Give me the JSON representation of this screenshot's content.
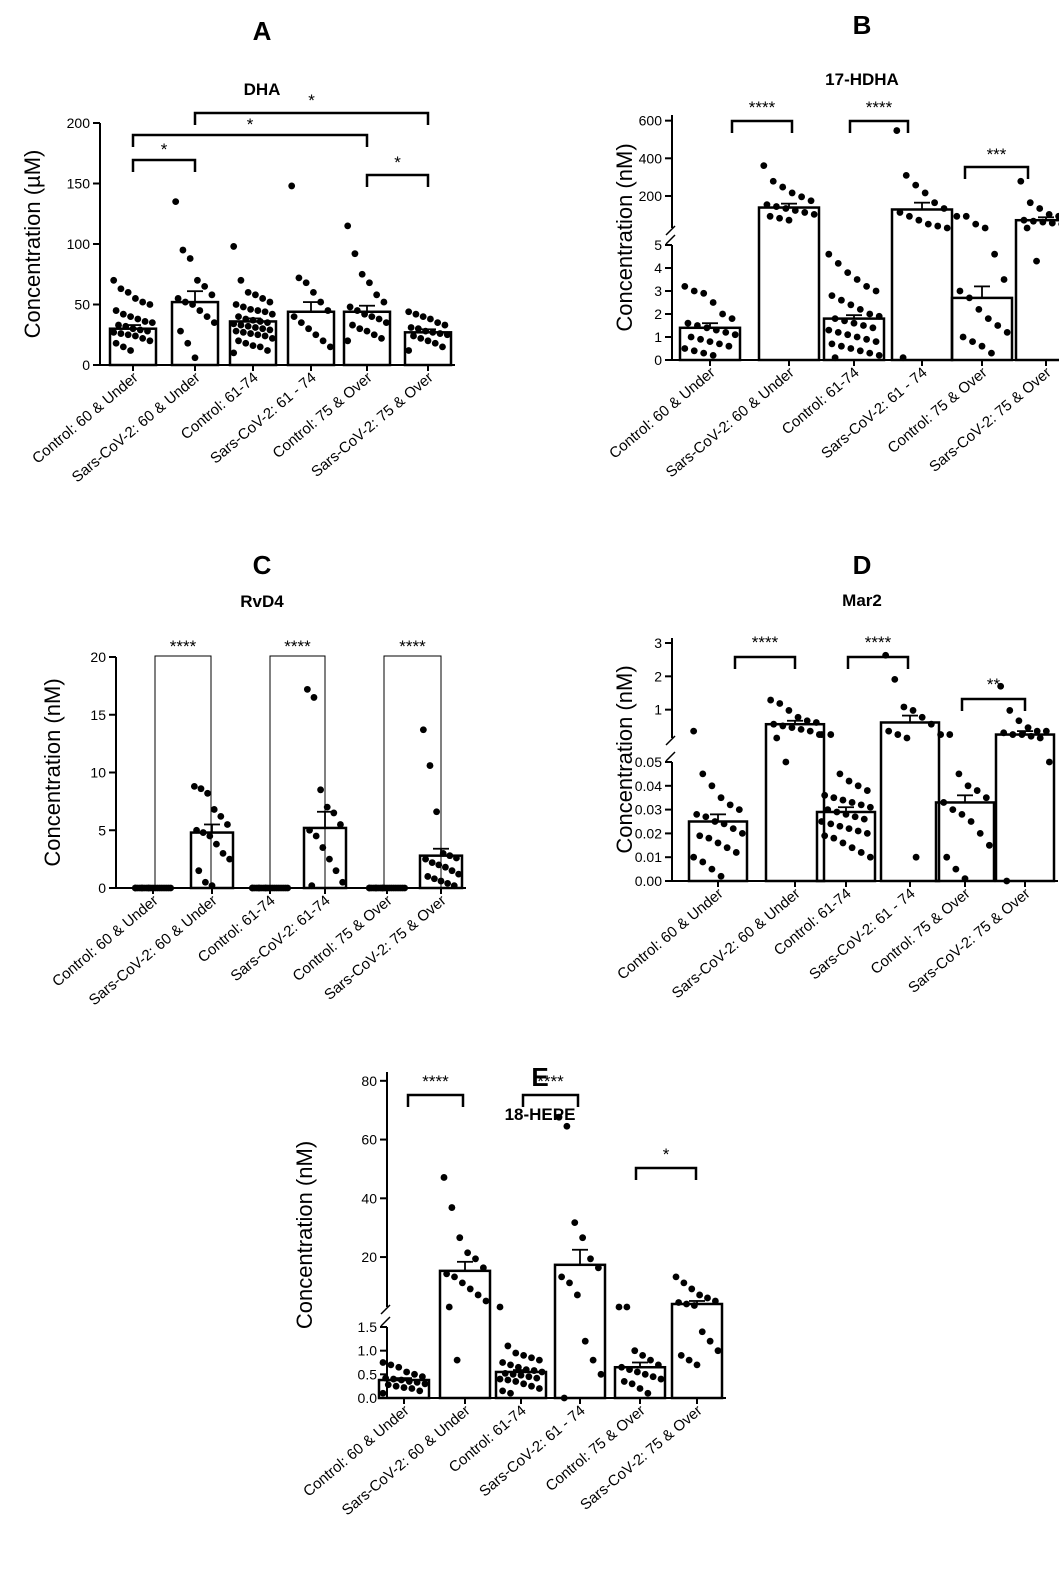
{
  "figure": {
    "panels": [
      {
        "letter": "A",
        "title": "DHA",
        "ylabel": "Concentration (µM)",
        "categories": [
          "Control: 60 & Under",
          "Sars-CoV-2: 60 & Under",
          "Control: 61-74",
          "Sars-CoV-2: 61 - 74",
          "Control: 75 & Over",
          "Sars-CoV-2: 75 & Over"
        ],
        "yticks": [
          "0",
          "50",
          "100",
          "150",
          "200"
        ],
        "significance": [
          "*",
          "*",
          "*",
          "*"
        ]
      },
      {
        "letter": "B",
        "title": "17-HDHA",
        "ylabel": "Concentration (nM)",
        "categories": [
          "Control: 60 & Under",
          "Sars-CoV-2: 60 & Under",
          "Control: 61-74",
          "Sars-CoV-2: 61 - 74",
          "Control: 75 & Over",
          "Sars-CoV-2: 75 & Over"
        ],
        "yticks_lower": [
          "0",
          "1",
          "2",
          "3",
          "4",
          "5"
        ],
        "yticks_upper": [
          "200",
          "400",
          "600"
        ],
        "significance": [
          "****",
          "****",
          "***"
        ]
      },
      {
        "letter": "C",
        "title": "RvD4",
        "ylabel": "Concentration (nM)",
        "categories": [
          "Control: 60 & Under",
          "Sars-CoV-2: 60 & Under",
          "Control: 61-74",
          "Sars-CoV-2: 61-74",
          "Control: 75 & Over",
          "Sars-CoV-2: 75 & Over"
        ],
        "yticks": [
          "0",
          "5",
          "10",
          "15",
          "20"
        ],
        "significance": [
          "****",
          "****",
          "****"
        ]
      },
      {
        "letter": "D",
        "title": "Mar2",
        "ylabel": "Concentration (nM)",
        "categories": [
          "Control: 60 & Under",
          "Sars-CoV-2: 60 & Under",
          "Control: 61-74",
          "Sars-CoV-2: 61 - 74",
          "Control: 75 & Over",
          "Sars-CoV-2: 75 & Over"
        ],
        "yticks_lower": [
          "0.00",
          "0.01",
          "0.02",
          "0.03",
          "0.04",
          "0.05"
        ],
        "yticks_upper": [
          "1",
          "2",
          "3"
        ],
        "significance": [
          "****",
          "****",
          "**"
        ]
      },
      {
        "letter": "E",
        "title": "18-HEPE",
        "ylabel": "Concentration (nM)",
        "categories": [
          "Control: 60 & Under",
          "Sars-CoV-2: 60 & Under",
          "Control: 61-74",
          "Sars-CoV-2: 61 - 74",
          "Control: 75 & Over",
          "Sars-CoV-2: 75 & Over"
        ],
        "yticks_lower": [
          "0.0",
          "0.5",
          "1.0",
          "1.5"
        ],
        "yticks_upper": [
          "20",
          "40",
          "60",
          "80"
        ],
        "significance": [
          "****",
          "****",
          "*"
        ]
      }
    ]
  },
  "chart_data": [
    {
      "type": "bar",
      "title": "DHA",
      "ylabel": "Concentration (µM)",
      "ylim": [
        0,
        200
      ],
      "categories": [
        "Control: 60 & Under",
        "Sars-CoV-2: 60 & Under",
        "Control: 61-74",
        "Sars-CoV-2: 61 - 74",
        "Control: 75 & Over",
        "Sars-CoV-2: 75 & Over"
      ],
      "values": [
        30,
        52,
        36,
        44,
        44,
        27
      ],
      "sem": [
        3,
        9,
        2.5,
        8,
        5,
        2.5
      ],
      "points": [
        [
          70,
          63,
          60,
          55,
          52,
          50,
          45,
          42,
          40,
          38,
          36,
          35,
          33,
          32,
          30,
          29,
          28,
          27,
          26,
          25,
          24,
          22,
          20,
          18,
          15,
          12
        ],
        [
          135,
          95,
          88,
          70,
          65,
          58,
          55,
          52,
          50,
          45,
          40,
          35,
          28,
          18,
          6
        ],
        [
          98,
          70,
          60,
          58,
          55,
          52,
          50,
          48,
          46,
          45,
          44,
          42,
          40,
          38,
          37,
          36,
          35,
          34,
          33,
          32,
          31,
          30,
          29,
          28,
          27,
          26,
          25,
          24,
          22,
          20,
          18,
          16,
          15,
          12,
          10
        ],
        [
          148,
          72,
          68,
          60,
          52,
          45,
          40,
          35,
          30,
          25,
          20,
          15
        ],
        [
          115,
          92,
          75,
          68,
          58,
          52,
          48,
          45,
          42,
          40,
          38,
          35,
          33,
          30,
          28,
          25,
          22,
          20
        ],
        [
          44,
          42,
          40,
          38,
          35,
          33,
          31,
          30,
          28,
          27,
          26,
          25,
          24,
          22,
          20,
          18,
          15,
          12
        ]
      ],
      "comparisons": [
        {
          "pair": [
            0,
            1
          ],
          "label": "*"
        },
        {
          "pair": [
            0,
            4
          ],
          "label": "*"
        },
        {
          "pair": [
            1,
            5
          ],
          "label": "*"
        },
        {
          "pair": [
            4,
            5
          ],
          "label": "*"
        }
      ]
    },
    {
      "type": "bar",
      "title": "17-HDHA",
      "ylabel": "Concentration (nM)",
      "broken_axis": {
        "lower": [
          0,
          5
        ],
        "upper": [
          0,
          600
        ]
      },
      "categories": [
        "Control: 60 & Under",
        "Sars-CoV-2: 60 & Under",
        "Control: 61-74",
        "Sars-CoV-2: 61 - 74",
        "Control: 75 & Over",
        "Sars-CoV-2: 75 & Over"
      ],
      "values": [
        1.4,
        125,
        1.8,
        115,
        2.7,
        60
      ],
      "sem": [
        0.2,
        20,
        0.15,
        35,
        0.5,
        15
      ],
      "points": [
        [
          3.2,
          3.0,
          2.9,
          2.5,
          2.0,
          1.8,
          1.6,
          1.5,
          1.4,
          1.3,
          1.2,
          1.1,
          1.0,
          0.9,
          0.8,
          0.7,
          0.6,
          0.5,
          0.4,
          0.3,
          0.2
        ],
        [
          340,
          260,
          230,
          200,
          180,
          160,
          140,
          130,
          120,
          110,
          100,
          90,
          80,
          70,
          60
        ],
        [
          4.6,
          4.2,
          3.8,
          3.5,
          3.2,
          3.0,
          2.8,
          2.6,
          2.4,
          2.2,
          2.0,
          1.9,
          1.8,
          1.7,
          1.6,
          1.5,
          1.4,
          1.3,
          1.2,
          1.1,
          1.0,
          0.9,
          0.8,
          0.7,
          0.6,
          0.5,
          0.4,
          0.3,
          0.2,
          0.1
        ],
        [
          520,
          290,
          240,
          200,
          150,
          120,
          100,
          80,
          60,
          40,
          30,
          20,
          0.1
        ],
        [
          80,
          80,
          40,
          20,
          4.6,
          3.5,
          3.0,
          2.7,
          2.2,
          1.8,
          1.5,
          1.2,
          1.0,
          0.8,
          0.6,
          0.3
        ],
        [
          260,
          150,
          120,
          90,
          80,
          70,
          60,
          55,
          50,
          45,
          40,
          30,
          20,
          4.3
        ]
      ],
      "comparisons": [
        {
          "pair": [
            0,
            1
          ],
          "label": "****"
        },
        {
          "pair": [
            2,
            3
          ],
          "label": "****"
        },
        {
          "pair": [
            4,
            5
          ],
          "label": "***"
        }
      ]
    },
    {
      "type": "bar",
      "title": "RvD4",
      "ylabel": "Concentration (nM)",
      "ylim": [
        0,
        20
      ],
      "categories": [
        "Control: 60 & Under",
        "Sars-CoV-2: 60 & Under",
        "Control: 61-74",
        "Sars-CoV-2: 61-74",
        "Control: 75 & Over",
        "Sars-CoV-2: 75 & Over"
      ],
      "values": [
        0,
        4.8,
        0,
        5.2,
        0,
        2.8
      ],
      "sem": [
        0,
        0.7,
        0,
        1.4,
        0,
        0.6
      ],
      "points": [
        [
          0,
          0,
          0,
          0,
          0,
          0,
          0,
          0,
          0,
          0,
          0,
          0,
          0,
          0,
          0,
          0,
          0,
          0,
          0,
          0
        ],
        [
          8.8,
          8.6,
          8.2,
          6.8,
          6.2,
          5.5,
          5.0,
          4.8,
          4.5,
          3.8,
          3.0,
          2.5,
          1.5,
          0.5,
          0.2
        ],
        [
          0,
          0,
          0,
          0,
          0,
          0,
          0,
          0,
          0,
          0,
          0,
          0,
          0,
          0,
          0,
          0,
          0,
          0,
          0,
          0
        ],
        [
          17.2,
          16.5,
          8.5,
          7.0,
          6.5,
          5.5,
          5.0,
          4.5,
          3.5,
          2.5,
          1.5,
          0.5,
          0.2
        ],
        [
          0,
          0,
          0,
          0,
          0,
          0,
          0,
          0,
          0,
          0,
          0,
          0,
          0,
          0,
          0,
          0,
          0,
          0,
          0,
          0
        ],
        [
          13.7,
          10.6,
          6.6,
          3.0,
          2.8,
          2.6,
          2.5,
          2.2,
          2.0,
          1.8,
          1.5,
          1.2,
          1.0,
          0.8,
          0.6,
          0.4,
          0.2
        ]
      ],
      "comparisons": [
        {
          "pair": [
            0,
            1
          ],
          "label": "****"
        },
        {
          "pair": [
            2,
            3
          ],
          "label": "****"
        },
        {
          "pair": [
            4,
            5
          ],
          "label": "****"
        }
      ]
    },
    {
      "type": "bar",
      "title": "Mar2",
      "ylabel": "Concentration (nM)",
      "broken_axis": {
        "lower": [
          0,
          0.05
        ],
        "upper": [
          0,
          3
        ]
      },
      "categories": [
        "Control: 60 & Under",
        "Sars-CoV-2: 60 & Under",
        "Control: 61-74",
        "Sars-CoV-2: 61 - 74",
        "Control: 75 & Over",
        "Sars-CoV-2: 75 & Over"
      ],
      "values": [
        0.025,
        0.5,
        0.029,
        0.55,
        0.033,
        0.2
      ],
      "sem": [
        0.003,
        0.1,
        0.002,
        0.2,
        0.003,
        0.1
      ],
      "points": [
        [
          0.3,
          0.045,
          0.04,
          0.035,
          0.032,
          0.03,
          0.028,
          0.027,
          0.025,
          0.024,
          0.022,
          0.02,
          0.019,
          0.018,
          0.016,
          0.014,
          0.012,
          0.01,
          0.008,
          0.005,
          0.002
        ],
        [
          1.2,
          1.1,
          0.9,
          0.7,
          0.6,
          0.55,
          0.5,
          0.45,
          0.4,
          0.35,
          0.3,
          0.2,
          0.1,
          0.05
        ],
        [
          0.2,
          0.2,
          0.045,
          0.042,
          0.04,
          0.038,
          0.036,
          0.035,
          0.034,
          0.033,
          0.032,
          0.031,
          0.03,
          0.029,
          0.028,
          0.027,
          0.026,
          0.025,
          0.024,
          0.023,
          0.022,
          0.021,
          0.02,
          0.019,
          0.018,
          0.016,
          0.014,
          0.012,
          0.01
        ],
        [
          2.5,
          1.8,
          1.0,
          0.9,
          0.7,
          0.5,
          0.3,
          0.2,
          0.1,
          0.01
        ],
        [
          0.2,
          0.2,
          0.045,
          0.04,
          0.038,
          0.035,
          0.033,
          0.03,
          0.028,
          0.025,
          0.02,
          0.015,
          0.01,
          0.005,
          0.001
        ],
        [
          1.6,
          0.9,
          0.6,
          0.4,
          0.3,
          0.3,
          0.25,
          0.2,
          0.2,
          0.15,
          0.1,
          0.05,
          0.0
        ]
      ],
      "comparisons": [
        {
          "pair": [
            0,
            1
          ],
          "label": "****"
        },
        {
          "pair": [
            2,
            3
          ],
          "label": "****"
        },
        {
          "pair": [
            4,
            5
          ],
          "label": "**"
        }
      ]
    },
    {
      "type": "bar",
      "title": "18-HEPE",
      "ylabel": "Concentration (nM)",
      "broken_axis": {
        "lower": [
          0,
          1.5
        ],
        "upper": [
          0,
          80
        ]
      },
      "categories": [
        "Control: 60 & Under",
        "Sars-CoV-2: 60 & Under",
        "Control: 61-74",
        "Sars-CoV-2: 61 - 74",
        "Control: 75 & Over",
        "Sars-CoV-2: 75 & Over"
      ],
      "values": [
        0.38,
        14,
        0.55,
        16,
        0.65,
        3
      ],
      "sem": [
        0.04,
        3,
        0.04,
        5,
        0.1,
        1
      ],
      "points": [
        [
          0.75,
          0.7,
          0.65,
          0.55,
          0.5,
          0.45,
          0.42,
          0.4,
          0.38,
          0.35,
          0.33,
          0.3,
          0.28,
          0.25,
          0.22,
          0.2,
          0.15,
          0.1
        ],
        [
          45,
          35,
          25,
          20,
          18,
          15,
          13,
          12,
          10,
          8,
          6,
          4,
          2,
          0.8
        ],
        [
          2.0,
          1.1,
          0.95,
          0.9,
          0.85,
          0.8,
          0.75,
          0.7,
          0.65,
          0.6,
          0.58,
          0.55,
          0.52,
          0.5,
          0.48,
          0.45,
          0.42,
          0.4,
          0.38,
          0.35,
          0.3,
          0.25,
          0.2,
          0.15,
          0.1
        ],
        [
          65,
          62,
          30,
          25,
          18,
          15,
          12,
          10,
          6,
          1.2,
          0.8,
          0.5,
          0.0
        ],
        [
          2.0,
          2.0,
          1.0,
          0.9,
          0.8,
          0.7,
          0.65,
          0.6,
          0.55,
          0.5,
          0.45,
          0.4,
          0.35,
          0.3,
          0.2,
          0.1
        ],
        [
          12,
          10,
          8,
          6,
          5,
          4,
          3.5,
          3,
          2.5,
          1.4,
          1.2,
          1.0,
          0.9,
          0.8,
          0.7
        ]
      ],
      "comparisons": [
        {
          "pair": [
            0,
            1
          ],
          "label": "****"
        },
        {
          "pair": [
            2,
            3
          ],
          "label": "****"
        },
        {
          "pair": [
            4,
            5
          ],
          "label": "*"
        }
      ]
    }
  ]
}
